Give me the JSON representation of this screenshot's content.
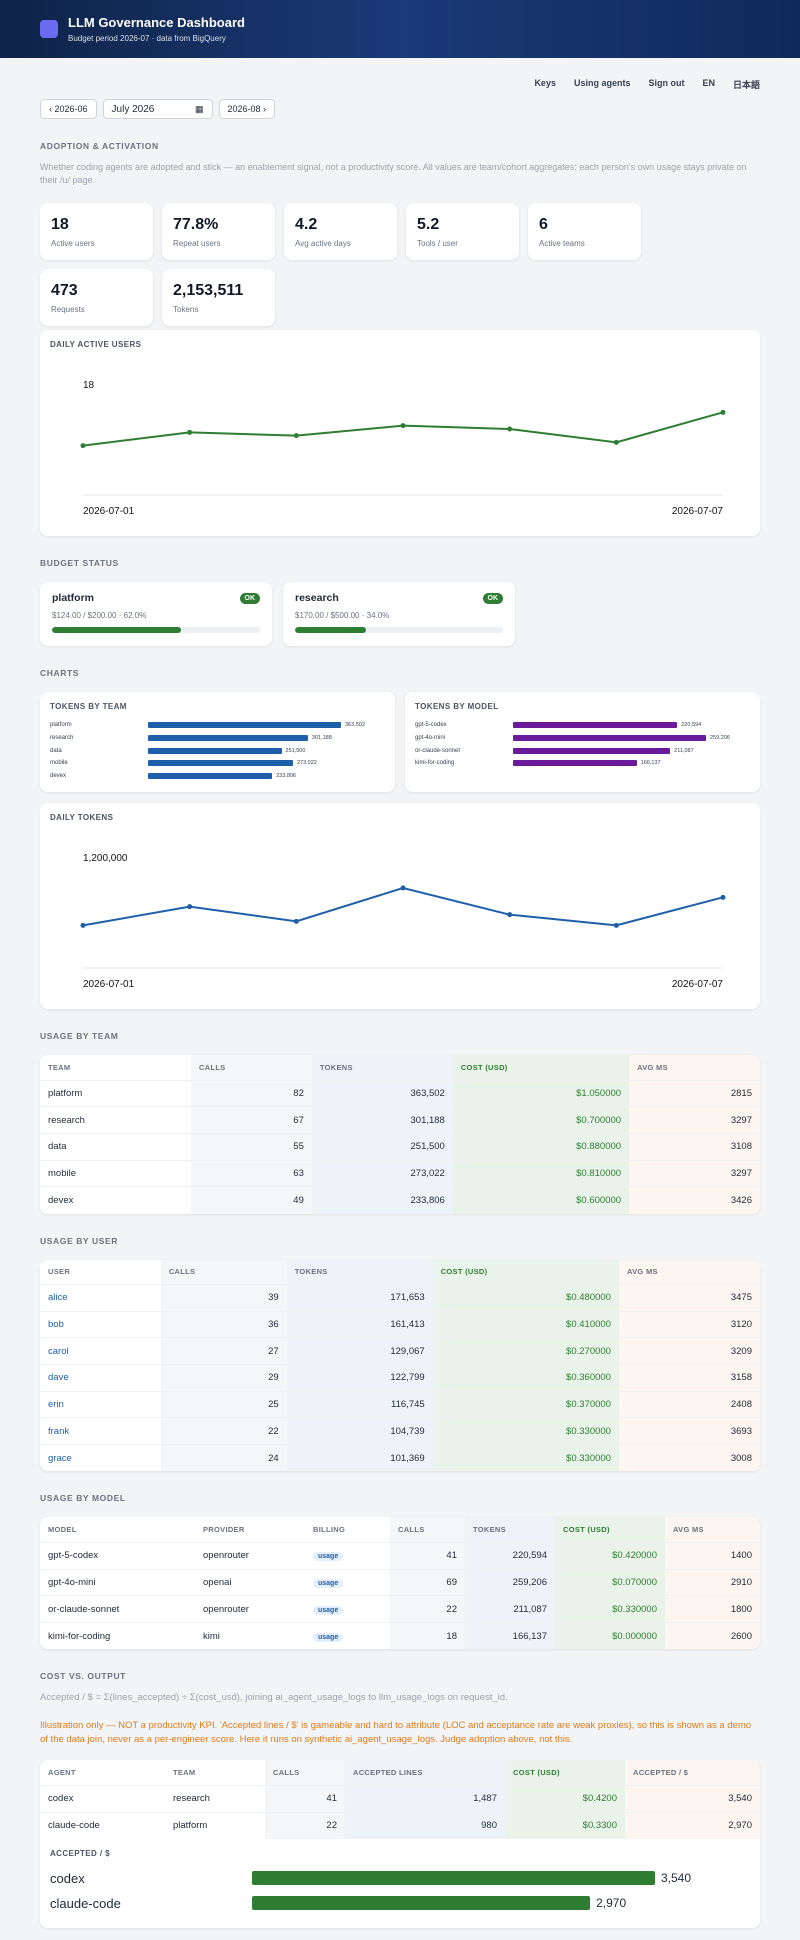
{
  "header": {
    "title": "LLM Governance Dashboard",
    "subtitle": "Budget period 2026-07 · data from BigQuery"
  },
  "nav": {
    "keys": "Keys",
    "using_agents": "Using agents",
    "sign_out": "Sign out",
    "en": "EN",
    "ja": "日本語"
  },
  "period": {
    "prev": "‹ 2026-06",
    "current": "July 2026",
    "next": "2026-08 ›"
  },
  "adoption": {
    "title": "ADOPTION & ACTIVATION",
    "desc": "Whether coding agents are adopted and stick — an enablement signal, not a productivity score. All values are team/cohort aggregates; each person's own usage stays private on their /u/ page.",
    "kpis": [
      {
        "value": "18",
        "label": "Active users"
      },
      {
        "value": "77.8%",
        "label": "Repeat users"
      },
      {
        "value": "4.2",
        "label": "Avg active days"
      },
      {
        "value": "5.2",
        "label": "Tools / user"
      },
      {
        "value": "6",
        "label": "Active teams"
      },
      {
        "value": "473",
        "label": "Requests"
      },
      {
        "value": "2,153,511",
        "label": "Tokens"
      }
    ]
  },
  "dau_chart": {
    "title": "DAILY ACTIVE USERS",
    "ymax_label": "18",
    "x_start": "2026-07-01",
    "x_end": "2026-07-07"
  },
  "budget": {
    "title": "BUDGET STATUS",
    "items": [
      {
        "name": "platform",
        "badge": "OK",
        "detail": "$124.00 / $200.00 · 62.0%",
        "pct": 62.0
      },
      {
        "name": "research",
        "badge": "OK",
        "detail": "$170.00 / $500.00 · 34.0%",
        "pct": 34.0
      }
    ]
  },
  "charts": {
    "title": "CHARTS",
    "by_team_title": "TOKENS BY TEAM",
    "by_model_title": "TOKENS BY MODEL",
    "daily_tokens_title": "DAILY TOKENS",
    "daily_ymax_label": "1,200,000",
    "x_start": "2026-07-01",
    "x_end": "2026-07-07"
  },
  "team_table": {
    "title": "USAGE BY TEAM",
    "headers": [
      "TEAM",
      "CALLS",
      "TOKENS",
      "COST (USD)",
      "AVG MS"
    ],
    "rows": [
      [
        "platform",
        "82",
        "363,502",
        "$1.050000",
        "2815"
      ],
      [
        "research",
        "67",
        "301,188",
        "$0.700000",
        "3297"
      ],
      [
        "data",
        "55",
        "251,500",
        "$0.880000",
        "3108"
      ],
      [
        "mobile",
        "63",
        "273,022",
        "$0.810000",
        "3297"
      ],
      [
        "devex",
        "49",
        "233,806",
        "$0.600000",
        "3426"
      ]
    ]
  },
  "user_table": {
    "title": "USAGE BY USER",
    "headers": [
      "USER",
      "CALLS",
      "TOKENS",
      "COST (USD)",
      "AVG MS"
    ],
    "rows": [
      [
        "alice",
        "39",
        "171,653",
        "$0.480000",
        "3475"
      ],
      [
        "bob",
        "36",
        "161,413",
        "$0.410000",
        "3120"
      ],
      [
        "carol",
        "27",
        "129,067",
        "$0.270000",
        "3209"
      ],
      [
        "dave",
        "29",
        "122,799",
        "$0.360000",
        "3158"
      ],
      [
        "erin",
        "25",
        "116,745",
        "$0.370000",
        "2408"
      ],
      [
        "frank",
        "22",
        "104,739",
        "$0.330000",
        "3693"
      ],
      [
        "grace",
        "24",
        "101,369",
        "$0.330000",
        "3008"
      ]
    ]
  },
  "model_table": {
    "title": "USAGE BY MODEL",
    "headers": [
      "MODEL",
      "PROVIDER",
      "BILLING",
      "CALLS",
      "TOKENS",
      "COST (USD)",
      "AVG MS"
    ],
    "rows": [
      [
        "gpt-5-codex",
        "openrouter",
        "usage",
        "41",
        "220,594",
        "$0.420000",
        "1400"
      ],
      [
        "gpt-4o-mini",
        "openai",
        "usage",
        "69",
        "259,206",
        "$0.070000",
        "2910"
      ],
      [
        "or-claude-sonnet",
        "openrouter",
        "usage",
        "22",
        "211,087",
        "$0.330000",
        "1800"
      ],
      [
        "kimi-for-coding",
        "kimi",
        "usage",
        "18",
        "166,137",
        "$0.000000",
        "2600"
      ]
    ]
  },
  "cost_output": {
    "title": "COST VS. OUTPUT",
    "formula": "Accepted / $ = Σ(lines_accepted) ÷ Σ(cost_usd), joining ai_agent_usage_logs to llm_usage_logs on request_id.",
    "note": "Illustration only — NOT a productivity KPI. 'Accepted lines / $' is gameable and hard to attribute (LOC and acceptance rate are weak proxies), so this is shown as a demo of the data join, never as a per-engineer score. Here it runs on synthetic ai_agent_usage_logs. Judge adoption above, not this.",
    "headers": [
      "AGENT",
      "TEAM",
      "CALLS",
      "ACCEPTED LINES",
      "COST (USD)",
      "ACCEPTED / $"
    ],
    "rows": [
      [
        "codex",
        "research",
        "41",
        "1,487",
        "$0.4200",
        "3,540"
      ],
      [
        "claude-code",
        "platform",
        "22",
        "980",
        "$0.3300",
        "2,970"
      ]
    ],
    "chart_title": "ACCEPTED / $"
  },
  "colors": {
    "green": "#2e7d32",
    "blue": "#1f5faa",
    "purple": "#6a1b9a",
    "header": "#0e2347"
  },
  "chart_data": [
    {
      "type": "line",
      "title": "DAILY ACTIVE USERS",
      "x": [
        "2026-07-01",
        "2026-07-02",
        "2026-07-03",
        "2026-07-04",
        "2026-07-05",
        "2026-07-06",
        "2026-07-07"
      ],
      "values": [
        13,
        15,
        14.5,
        16,
        15.5,
        13.5,
        18
      ]
    },
    {
      "type": "bar",
      "title": "TOKENS BY TEAM",
      "categories": [
        "platform",
        "research",
        "data",
        "mobile",
        "devex"
      ],
      "values": [
        363502,
        301188,
        251500,
        273022,
        233806
      ]
    },
    {
      "type": "bar",
      "title": "TOKENS BY MODEL",
      "categories": [
        "gpt-5-codex",
        "gpt-4o-mini",
        "or-claude-sonnet",
        "kimi-for-coding"
      ],
      "values": [
        220594,
        259206,
        211087,
        166137
      ]
    },
    {
      "type": "line",
      "title": "DAILY TOKENS",
      "x": [
        "2026-07-01",
        "2026-07-02",
        "2026-07-03",
        "2026-07-04",
        "2026-07-05",
        "2026-07-06",
        "2026-07-07"
      ],
      "values": [
        700000,
        980000,
        760000,
        1260000,
        860000,
        700000,
        1120000
      ]
    },
    {
      "type": "bar",
      "title": "ACCEPTED / $",
      "categories": [
        "codex",
        "claude-code"
      ],
      "values": [
        3540,
        2970
      ]
    }
  ]
}
